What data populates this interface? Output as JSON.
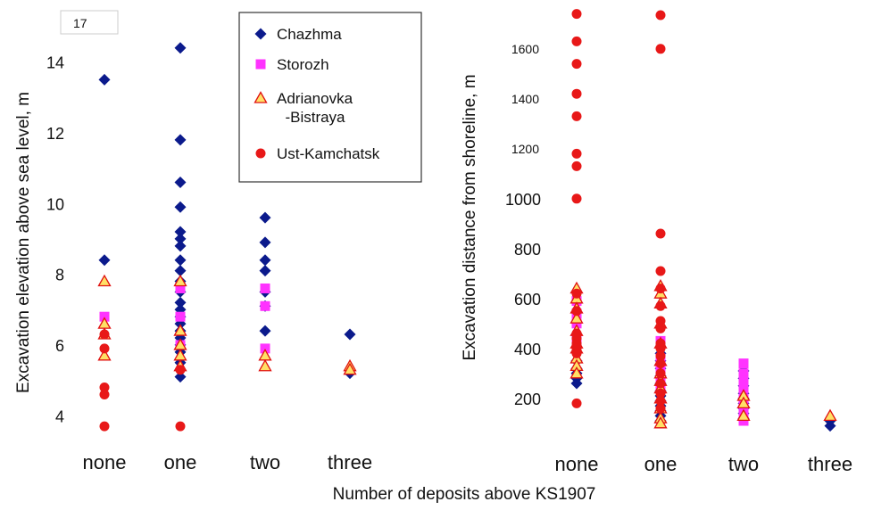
{
  "figure": {
    "xlabel": "Number of deposits above KS1907",
    "categories": [
      "none",
      "one",
      "two",
      "three"
    ]
  },
  "legend": [
    {
      "name": "Chazhma",
      "marker": "diamond",
      "color": "#0b1a8c",
      "label_lines": [
        "Chazhma"
      ]
    },
    {
      "name": "Storozh",
      "marker": "square",
      "color": "#ff33ff",
      "label_lines": [
        "Storozh"
      ]
    },
    {
      "name": "Adrianovka-Bistraya",
      "marker": "triangle",
      "color": "#ffe066",
      "stroke": "#e01010",
      "label_lines": [
        "Adrianovka",
        "-Bistraya"
      ]
    },
    {
      "name": "Ust-Kamchatsk",
      "marker": "circle",
      "color": "#e81818",
      "label_lines": [
        "Ust-Kamchatsk"
      ]
    }
  ],
  "chart_data": [
    {
      "type": "scatter",
      "ylabel": "Excavation elevation above sea level, m",
      "categories": [
        "none",
        "one",
        "two",
        "three"
      ],
      "ylim": [
        3.2,
        15.2
      ],
      "yticks": [
        4,
        6,
        8,
        10,
        12,
        14
      ],
      "annotation": "17",
      "series": [
        {
          "name": "Chazhma",
          "points": [
            [
              0,
              15
            ],
            [
              0,
              13.5
            ],
            [
              0,
              8.4
            ],
            [
              1,
              14.4
            ],
            [
              1,
              11.8
            ],
            [
              1,
              10.6
            ],
            [
              1,
              9.9
            ],
            [
              1,
              9.2
            ],
            [
              1,
              9.0
            ],
            [
              1,
              8.8
            ],
            [
              1,
              8.4
            ],
            [
              1,
              8.1
            ],
            [
              1,
              7.8
            ],
            [
              1,
              7.5
            ],
            [
              1,
              7.2
            ],
            [
              1,
              7.0
            ],
            [
              1,
              6.8
            ],
            [
              1,
              6.6
            ],
            [
              1,
              6.4
            ],
            [
              1,
              6.2
            ],
            [
              1,
              6.0
            ],
            [
              1,
              5.8
            ],
            [
              1,
              5.5
            ],
            [
              1,
              5.1
            ],
            [
              2,
              9.6
            ],
            [
              2,
              8.9
            ],
            [
              2,
              8.4
            ],
            [
              2,
              8.1
            ],
            [
              2,
              7.5
            ],
            [
              2,
              7.1
            ],
            [
              2,
              6.4
            ],
            [
              3,
              6.3
            ],
            [
              3,
              5.2
            ]
          ]
        },
        {
          "name": "Storozh",
          "points": [
            [
              0,
              6.8
            ],
            [
              1,
              7.6
            ],
            [
              1,
              6.8
            ],
            [
              1,
              6.0
            ],
            [
              2,
              7.6
            ],
            [
              2,
              7.1
            ],
            [
              2,
              5.9
            ]
          ]
        },
        {
          "name": "Adrianovka-Bistraya",
          "points": [
            [
              0,
              7.8
            ],
            [
              0,
              6.6
            ],
            [
              0,
              6.3
            ],
            [
              0,
              5.7
            ],
            [
              1,
              7.8
            ],
            [
              1,
              6.4
            ],
            [
              1,
              6.0
            ],
            [
              1,
              5.7
            ],
            [
              1,
              5.4
            ],
            [
              2,
              5.7
            ],
            [
              2,
              5.4
            ],
            [
              3,
              5.4
            ],
            [
              3,
              5.3
            ]
          ]
        },
        {
          "name": "Ust-Kamchatsk",
          "points": [
            [
              0,
              6.3
            ],
            [
              0,
              5.9
            ],
            [
              0,
              4.8
            ],
            [
              0,
              4.6
            ],
            [
              0,
              3.7
            ],
            [
              1,
              5.3
            ],
            [
              1,
              3.7
            ]
          ]
        }
      ]
    },
    {
      "type": "scatter",
      "ylabel": "Excavation distance from shoreline, m",
      "categories": [
        "none",
        "one",
        "two",
        "three"
      ],
      "ylim": [
        60,
        1760
      ],
      "yticks_large": [
        200,
        400,
        600,
        800,
        1000
      ],
      "yticks_small": [
        1000,
        1200,
        1400,
        1600
      ],
      "series": [
        {
          "name": "Chazhma",
          "points": [
            [
              0,
              350
            ],
            [
              0,
              320
            ],
            [
              0,
              300
            ],
            [
              0,
              280
            ],
            [
              0,
              260
            ],
            [
              1,
              380
            ],
            [
              1,
              350
            ],
            [
              1,
              320
            ],
            [
              1,
              290
            ],
            [
              1,
              260
            ],
            [
              1,
              230
            ],
            [
              1,
              210
            ],
            [
              1,
              190
            ],
            [
              1,
              170
            ],
            [
              1,
              150
            ],
            [
              1,
              130
            ],
            [
              1,
              110
            ],
            [
              2,
              310
            ],
            [
              2,
              280
            ],
            [
              2,
              250
            ],
            [
              2,
              220
            ],
            [
              2,
              200
            ],
            [
              2,
              180
            ],
            [
              2,
              160
            ],
            [
              2,
              140
            ],
            [
              2,
              120
            ],
            [
              3,
              110
            ],
            [
              3,
              90
            ]
          ]
        },
        {
          "name": "Storozh",
          "points": [
            [
              0,
              590
            ],
            [
              0,
              540
            ],
            [
              0,
              500
            ],
            [
              0,
              430
            ],
            [
              1,
              430
            ],
            [
              1,
              360
            ],
            [
              1,
              330
            ],
            [
              1,
              300
            ],
            [
              1,
              270
            ],
            [
              1,
              240
            ],
            [
              2,
              340
            ],
            [
              2,
              300
            ],
            [
              2,
              270
            ],
            [
              2,
              240
            ],
            [
              2,
              200
            ],
            [
              2,
              170
            ],
            [
              2,
              140
            ],
            [
              2,
              110
            ]
          ]
        },
        {
          "name": "Adrianovka-Bistraya",
          "points": [
            [
              0,
              640
            ],
            [
              0,
              600
            ],
            [
              0,
              560
            ],
            [
              0,
              520
            ],
            [
              0,
              470
            ],
            [
              0,
              420
            ],
            [
              0,
              400
            ],
            [
              0,
              360
            ],
            [
              0,
              330
            ],
            [
              0,
              300
            ],
            [
              1,
              650
            ],
            [
              1,
              620
            ],
            [
              1,
              580
            ],
            [
              1,
              500
            ],
            [
              1,
              420
            ],
            [
              1,
              350
            ],
            [
              1,
              300
            ],
            [
              1,
              270
            ],
            [
              1,
              240
            ],
            [
              1,
              200
            ],
            [
              1,
              160
            ],
            [
              1,
              120
            ],
            [
              1,
              100
            ],
            [
              2,
              210
            ],
            [
              2,
              180
            ],
            [
              2,
              130
            ],
            [
              3,
              130
            ]
          ]
        },
        {
          "name": "Ust-Kamchatsk",
          "points": [
            [
              0,
              1740
            ],
            [
              0,
              1630
            ],
            [
              0,
              1540
            ],
            [
              0,
              1420
            ],
            [
              0,
              1330
            ],
            [
              0,
              1180
            ],
            [
              0,
              1130
            ],
            [
              0,
              1000
            ],
            [
              0,
              620
            ],
            [
              0,
              550
            ],
            [
              0,
              460
            ],
            [
              0,
              440
            ],
            [
              0,
              420
            ],
            [
              0,
              400
            ],
            [
              0,
              380
            ],
            [
              0,
              180
            ],
            [
              1,
              1735
            ],
            [
              1,
              1600
            ],
            [
              1,
              860
            ],
            [
              1,
              710
            ],
            [
              1,
              640
            ],
            [
              1,
              570
            ],
            [
              1,
              510
            ],
            [
              1,
              480
            ],
            [
              1,
              420
            ],
            [
              1,
              400
            ],
            [
              1,
              370
            ],
            [
              1,
              340
            ],
            [
              1,
              300
            ],
            [
              1,
              260
            ],
            [
              1,
              220
            ],
            [
              1,
              190
            ],
            [
              1,
              160
            ]
          ]
        }
      ]
    }
  ]
}
